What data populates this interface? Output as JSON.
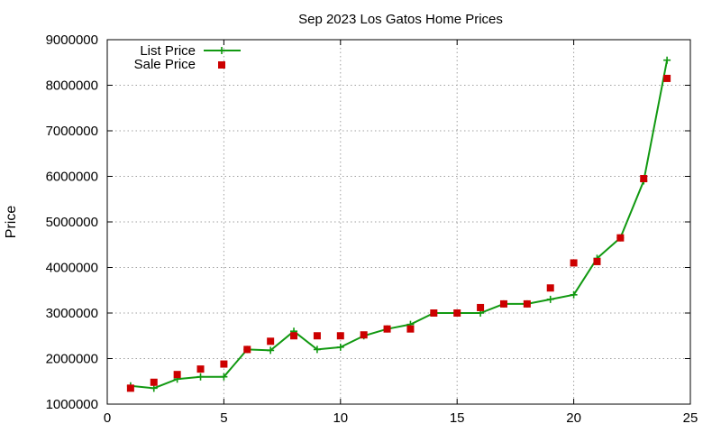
{
  "chart_data": {
    "type": "line",
    "title": "Sep 2023 Los Gatos Home Prices",
    "xlabel": "",
    "ylabel": "Price",
    "xlim": [
      0,
      25
    ],
    "ylim": [
      1000000,
      9000000
    ],
    "x_ticks": [
      0,
      5,
      10,
      15,
      20,
      25
    ],
    "y_ticks": [
      1000000,
      2000000,
      3000000,
      4000000,
      5000000,
      6000000,
      7000000,
      8000000,
      9000000
    ],
    "grid": true,
    "legend_position": "top-left",
    "series": [
      {
        "name": "List Price",
        "style": "line-with-plus-markers",
        "color": "#119911",
        "x": [
          1,
          2,
          3,
          4,
          5,
          6,
          7,
          8,
          9,
          10,
          11,
          12,
          13,
          14,
          15,
          16,
          17,
          18,
          19,
          20,
          21,
          22,
          23,
          24
        ],
        "y": [
          1400000,
          1350000,
          1550000,
          1600000,
          1600000,
          2200000,
          2180000,
          2600000,
          2200000,
          2250000,
          2500000,
          2650000,
          2750000,
          3000000,
          3000000,
          3000000,
          3200000,
          3200000,
          3300000,
          3400000,
          4200000,
          4650000,
          5900000,
          8550000
        ]
      },
      {
        "name": "Sale Price",
        "style": "square-markers",
        "color": "#cc0000",
        "x": [
          1,
          2,
          3,
          4,
          5,
          6,
          7,
          8,
          9,
          10,
          11,
          12,
          13,
          14,
          15,
          16,
          17,
          18,
          19,
          20,
          21,
          22,
          23,
          24
        ],
        "y": [
          1350000,
          1480000,
          1650000,
          1770000,
          1880000,
          2200000,
          2380000,
          2500000,
          2500000,
          2500000,
          2520000,
          2650000,
          2650000,
          3000000,
          3000000,
          3120000,
          3200000,
          3200000,
          3550000,
          4100000,
          4130000,
          4650000,
          5950000,
          8150000
        ]
      }
    ]
  }
}
